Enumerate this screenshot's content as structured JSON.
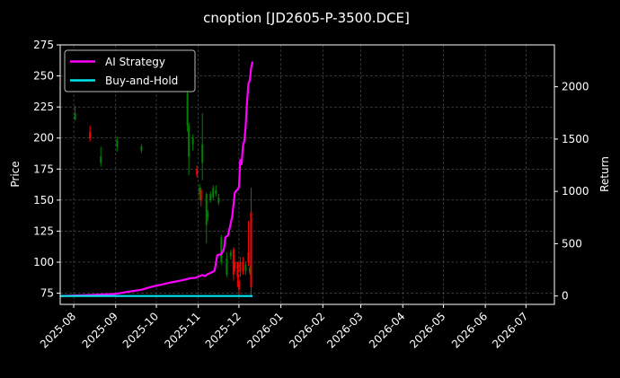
{
  "chart_data": {
    "type": "line",
    "title": "cnoption [JD2605-P-3500.DCE]",
    "ylabel": "Price",
    "y2label": "Return",
    "xlim": [
      "2025-07-22",
      "2026-07-22"
    ],
    "ylim": [
      66,
      275
    ],
    "y2lim": [
      -80,
      2400
    ],
    "x_ticks": [
      "2025-08",
      "2025-09",
      "2025-10",
      "2025-11",
      "2025-12",
      "2026-01",
      "2026-02",
      "2026-03",
      "2026-04",
      "2026-05",
      "2026-06",
      "2026-07"
    ],
    "x_tick_dates": [
      "2025-08-01",
      "2025-09-01",
      "2025-10-01",
      "2025-11-01",
      "2025-12-01",
      "2026-01-01",
      "2026-02-01",
      "2026-03-01",
      "2026-04-01",
      "2026-05-01",
      "2026-06-01",
      "2026-07-01"
    ],
    "y_ticks": [
      75,
      100,
      125,
      150,
      175,
      200,
      225,
      250,
      275
    ],
    "y2_ticks": [
      0,
      500,
      1000,
      1500,
      2000
    ],
    "grid": true,
    "legend_position": "top-left",
    "colors": {
      "ai_strategy": "#ff00ff",
      "buy_and_hold": "#00e5ee",
      "candle_up": "#008000",
      "candle_down": "#ff0000",
      "grid": "#555555"
    },
    "series": [
      {
        "name": "AI Strategy",
        "axis": "right",
        "x": [
          "2025-07-22",
          "2025-08-15",
          "2025-09-01",
          "2025-09-10",
          "2025-09-20",
          "2025-09-28",
          "2025-10-05",
          "2025-10-12",
          "2025-10-20",
          "2025-10-26",
          "2025-10-30",
          "2025-11-02",
          "2025-11-04",
          "2025-11-06",
          "2025-11-08",
          "2025-11-10",
          "2025-11-13",
          "2025-11-15",
          "2025-11-18",
          "2025-11-20",
          "2025-11-21",
          "2025-11-23",
          "2025-11-25",
          "2025-11-26",
          "2025-11-28",
          "2025-11-30",
          "2025-12-01",
          "2025-12-02",
          "2025-12-03",
          "2025-12-04",
          "2025-12-05",
          "2025-12-06",
          "2025-12-07",
          "2025-12-08",
          "2025-12-09",
          "2025-12-10",
          "2025-12-11"
        ],
        "values": [
          0,
          10,
          20,
          40,
          60,
          90,
          110,
          130,
          150,
          170,
          175,
          190,
          200,
          190,
          210,
          220,
          240,
          390,
          400,
          450,
          560,
          580,
          700,
          760,
          990,
          1020,
          1040,
          1300,
          1260,
          1440,
          1480,
          1620,
          1850,
          2030,
          2060,
          2180,
          2240
        ]
      },
      {
        "name": "Buy-and-Hold",
        "axis": "right",
        "x": [
          "2025-07-22",
          "2025-12-11"
        ],
        "values": [
          0,
          0
        ]
      }
    ],
    "candles": [
      {
        "date": "2025-08-02",
        "open": 215,
        "close": 220,
        "high": 226,
        "low": 214
      },
      {
        "date": "2025-08-13",
        "open": 205,
        "close": 200,
        "high": 210,
        "low": 197
      },
      {
        "date": "2025-08-21",
        "open": 180,
        "close": 185,
        "high": 193,
        "low": 177
      },
      {
        "date": "2025-09-02",
        "open": 193,
        "close": 198,
        "high": 201,
        "low": 189
      },
      {
        "date": "2025-09-20",
        "open": 190,
        "close": 193,
        "high": 195,
        "low": 188
      },
      {
        "date": "2025-10-24",
        "open": 210,
        "close": 236,
        "high": 240,
        "low": 205
      },
      {
        "date": "2025-10-25",
        "open": 185,
        "close": 210,
        "high": 212,
        "low": 170
      },
      {
        "date": "2025-10-28",
        "open": 195,
        "close": 200,
        "high": 203,
        "low": 190
      },
      {
        "date": "2025-10-31",
        "open": 175,
        "close": 170,
        "high": 178,
        "low": 168
      },
      {
        "date": "2025-11-02",
        "open": 155,
        "close": 160,
        "high": 163,
        "low": 150
      },
      {
        "date": "2025-11-03",
        "open": 158,
        "close": 150,
        "high": 160,
        "low": 145
      },
      {
        "date": "2025-11-04",
        "open": 180,
        "close": 195,
        "high": 220,
        "low": 166
      },
      {
        "date": "2025-11-07",
        "open": 130,
        "close": 155,
        "high": 156,
        "low": 115
      },
      {
        "date": "2025-11-08",
        "open": 136,
        "close": 140,
        "high": 142,
        "low": 133
      },
      {
        "date": "2025-11-10",
        "open": 150,
        "close": 155,
        "high": 157,
        "low": 148
      },
      {
        "date": "2025-11-12",
        "open": 152,
        "close": 160,
        "high": 162,
        "low": 150
      },
      {
        "date": "2025-11-14",
        "open": 155,
        "close": 158,
        "high": 162,
        "low": 153
      },
      {
        "date": "2025-11-16",
        "open": 148,
        "close": 152,
        "high": 155,
        "low": 146
      },
      {
        "date": "2025-11-18",
        "open": 100,
        "close": 120,
        "high": 122,
        "low": 98
      },
      {
        "date": "2025-11-22",
        "open": 90,
        "close": 103,
        "high": 108,
        "low": 88
      },
      {
        "date": "2025-11-25",
        "open": 105,
        "close": 108,
        "high": 110,
        "low": 102
      },
      {
        "date": "2025-11-27",
        "open": 110,
        "close": 90,
        "high": 112,
        "low": 85
      },
      {
        "date": "2025-11-28",
        "open": 100,
        "close": 95,
        "high": 101,
        "low": 92
      },
      {
        "date": "2025-11-30",
        "open": 100,
        "close": 88,
        "high": 100,
        "low": 80
      },
      {
        "date": "2025-12-01",
        "open": 85,
        "close": 78,
        "high": 90,
        "low": 72
      },
      {
        "date": "2025-12-02",
        "open": 100,
        "close": 92,
        "high": 104,
        "low": 88
      },
      {
        "date": "2025-12-04",
        "open": 100,
        "close": 93,
        "high": 104,
        "low": 90
      },
      {
        "date": "2025-12-06",
        "open": 93,
        "close": 98,
        "high": 100,
        "low": 90
      },
      {
        "date": "2025-12-08",
        "open": 108,
        "close": 100,
        "high": 133,
        "low": 97
      },
      {
        "date": "2025-12-09",
        "open": 92,
        "close": 95,
        "high": 97,
        "low": 90
      },
      {
        "date": "2025-12-10",
        "open": 140,
        "close": 80,
        "high": 160,
        "low": 72
      }
    ]
  }
}
